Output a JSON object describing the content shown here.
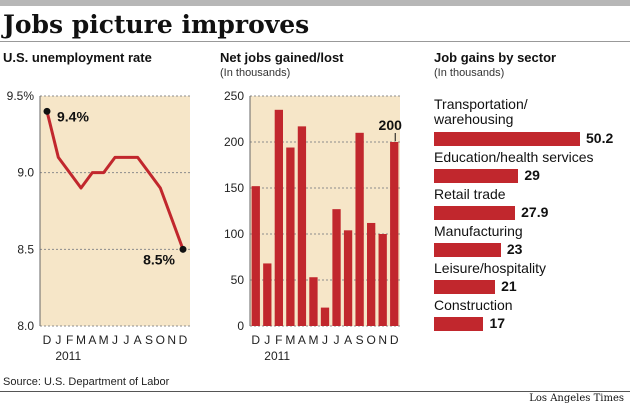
{
  "headline": "Jobs picture improves",
  "source": "Source: U.S. Department of Labor",
  "credit": "Los Angeles Times",
  "colors": {
    "accent": "#c1272d",
    "panel_bg": "#f6e6c8",
    "gridline": "#8c8c8c"
  },
  "chart_data": [
    {
      "type": "line",
      "title": "U.S. unemployment rate",
      "categories": [
        "D",
        "J",
        "F",
        "M",
        "A",
        "M",
        "J",
        "J",
        "A",
        "S",
        "O",
        "N",
        "D"
      ],
      "year_label": "2011",
      "values": [
        9.4,
        9.1,
        9.0,
        8.9,
        9.0,
        9.0,
        9.1,
        9.1,
        9.1,
        9.0,
        8.9,
        8.7,
        8.5
      ],
      "ylim": [
        8.0,
        9.5
      ],
      "yticks": [
        "9.5%",
        "9.0",
        "8.5",
        "8.0"
      ],
      "annotations": [
        "9.4%",
        "8.5%"
      ],
      "grid": true
    },
    {
      "type": "bar",
      "title": "Net jobs gained/lost",
      "subtitle": "(In thousands)",
      "categories": [
        "D",
        "J",
        "F",
        "M",
        "A",
        "M",
        "J",
        "J",
        "A",
        "S",
        "O",
        "N",
        "D"
      ],
      "year_label": "2011",
      "values": [
        152,
        68,
        235,
        194,
        217,
        53,
        20,
        127,
        104,
        210,
        112,
        100,
        200
      ],
      "ylim": [
        0,
        250
      ],
      "yticks": [
        "250",
        "200",
        "150",
        "100",
        "50",
        "0"
      ],
      "annotations": [
        "200"
      ],
      "grid": true
    },
    {
      "type": "bar",
      "title": "Job gains by sector",
      "subtitle": "(In thousands)",
      "categories": [
        "Transportation/\nwarehousing",
        "Education/health services",
        "Retail trade",
        "Manufacturing",
        "Leisure/hospitality",
        "Construction"
      ],
      "values": [
        50.2,
        29,
        27.9,
        23,
        21,
        17
      ],
      "value_labels": [
        "50.2",
        "29",
        "27.9",
        "23",
        "21",
        "17"
      ]
    }
  ]
}
